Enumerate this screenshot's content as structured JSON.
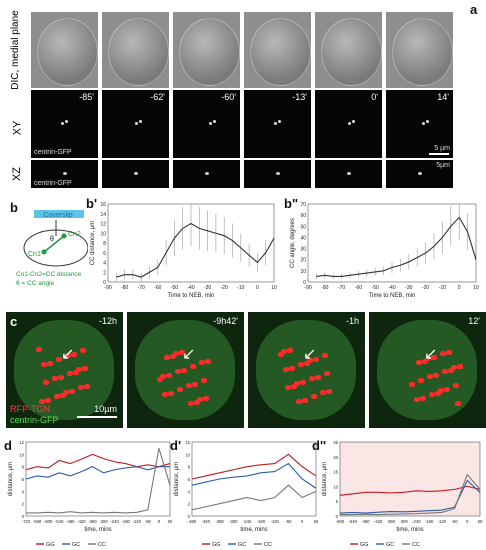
{
  "panel_a": {
    "letter": "a",
    "row_labels": {
      "dic": "DIC, medial plane",
      "xy": "XY",
      "xz": "XZ"
    },
    "times": [
      "-85'",
      "-62'",
      "-60'",
      "-13'",
      "0'",
      "14'"
    ],
    "channel": "centrin-GFP",
    "scale_xy": "5 µm",
    "scale_xz": "5µm"
  },
  "panel_b": {
    "letter": "b",
    "coverslip": "Coverslip",
    "cn1": "Cn1",
    "cn2": "Cn2",
    "theta": "θ",
    "legend_line1": "Cn1-Cn2=CC distance",
    "legend_line2": "θ = CC angle"
  },
  "panel_b1": {
    "letter": "b'",
    "xlabel": "Time to NEB, min",
    "ylabel": "CC distance, µm",
    "xticks": [
      "-90",
      "-80",
      "-70",
      "-60",
      "-50",
      "-40",
      "-30",
      "-20",
      "-10",
      "0",
      "10"
    ],
    "yticks": [
      "0",
      "2",
      "4",
      "6",
      "8",
      "10",
      "12",
      "14",
      "16"
    ]
  },
  "panel_b2": {
    "letter": "b\"",
    "xlabel": "Time to NEB, min",
    "ylabel": "CC angle, degrees",
    "xticks": [
      "-90",
      "-80",
      "-70",
      "-60",
      "-50",
      "-40",
      "-30",
      "-20",
      "-10",
      "0",
      "10"
    ],
    "yticks": [
      "0",
      "10",
      "20",
      "30",
      "40",
      "50",
      "60",
      "70"
    ]
  },
  "panel_c": {
    "letter": "c",
    "times": [
      "-12h",
      "-9h42'",
      "-1h",
      "12'"
    ],
    "legend_red": "RFP-TGN",
    "legend_green": "centrin-GFP",
    "scale": "10µm"
  },
  "panel_d": {
    "d1": {
      "letter": "d",
      "ylabel": "distance, µm",
      "xlabel": "time, mins",
      "yticks": [
        "0",
        "2",
        "4",
        "6",
        "8",
        "10",
        "12"
      ],
      "xticks": [
        "-720",
        "-660",
        "-600",
        "-540",
        "-480",
        "-420",
        "-360",
        "-300",
        "-240",
        "-180",
        "-120",
        "-60",
        "0",
        "60"
      ]
    },
    "d2": {
      "letter": "d'",
      "ylabel": "distance, µm",
      "xlabel": "time, mins",
      "yticks": [
        "0",
        "2",
        "4",
        "6",
        "8",
        "10",
        "12"
      ],
      "xticks": [
        "-480",
        "-420",
        "-360",
        "-300",
        "-240",
        "-180",
        "-120",
        "-60",
        "0",
        "60"
      ]
    },
    "d3": {
      "letter": "d''",
      "ylabel": "distance, µm",
      "xlabel": "time, mins",
      "yticks": [
        "0",
        "5",
        "10",
        "15",
        "20",
        "25"
      ],
      "xticks": [
        "-600",
        "-540",
        "-480",
        "-420",
        "-360",
        "-300",
        "-240",
        "-180",
        "-120",
        "-60",
        "0",
        "60"
      ]
    },
    "legend": [
      "GG",
      "GC",
      "CC"
    ],
    "colors": {
      "GG": "#c0191f",
      "GC": "#2a5ca8",
      "CC": "#777777"
    }
  },
  "chart_data": [
    {
      "type": "line",
      "id": "b'",
      "xlabel": "Time to NEB, min",
      "ylabel": "CC distance, µm",
      "xlim": [
        -90,
        10
      ],
      "ylim": [
        0,
        16
      ],
      "series": [
        {
          "x": [
            -85,
            -80,
            -75,
            -70,
            -65,
            -60,
            -55,
            -50,
            -45,
            -40,
            -35,
            -30,
            -25,
            -20,
            -15,
            -10,
            -5,
            0,
            5,
            10
          ],
          "values": [
            1,
            1.5,
            1.5,
            1,
            2,
            3,
            6,
            9,
            11,
            12,
            11,
            10.5,
            10,
            9.5,
            8.5,
            7,
            5.5,
            4,
            6,
            9
          ]
        }
      ]
    },
    {
      "type": "line",
      "id": "b\"",
      "xlabel": "Time to NEB, min",
      "ylabel": "CC angle, degrees",
      "xlim": [
        -90,
        10
      ],
      "ylim": [
        0,
        70
      ],
      "series": [
        {
          "x": [
            -85,
            -80,
            -75,
            -70,
            -65,
            -60,
            -55,
            -50,
            -45,
            -40,
            -35,
            -30,
            -25,
            -20,
            -15,
            -10,
            -5,
            0,
            5,
            10
          ],
          "values": [
            5,
            6,
            5,
            5,
            6,
            7,
            8,
            9,
            10,
            13,
            15,
            18,
            22,
            26,
            32,
            40,
            50,
            58,
            45,
            20
          ]
        }
      ]
    },
    {
      "type": "line",
      "id": "d",
      "xlabel": "time, mins",
      "ylabel": "distance, µm",
      "xlim": [
        -720,
        60
      ],
      "ylim": [
        0,
        12
      ],
      "series": [
        {
          "name": "GG",
          "x": [
            -720,
            -660,
            -600,
            -540,
            -480,
            -420,
            -360,
            -300,
            -240,
            -180,
            -120,
            -60,
            0,
            60
          ],
          "values": [
            7.5,
            8,
            7.8,
            9,
            8.5,
            9.2,
            10,
            9.3,
            8.8,
            8.5,
            8,
            8.3,
            8,
            8.5
          ]
        },
        {
          "name": "GC",
          "x": [
            -720,
            -660,
            -600,
            -540,
            -480,
            -420,
            -360,
            -300,
            -240,
            -180,
            -120,
            -60,
            0,
            60
          ],
          "values": [
            6,
            6.5,
            6.3,
            7,
            6.5,
            7.2,
            8,
            7,
            7.5,
            7.8,
            8,
            7.5,
            8,
            8
          ]
        },
        {
          "name": "CC",
          "x": [
            -720,
            -660,
            -600,
            -540,
            -480,
            -420,
            -360,
            -300,
            -240,
            -180,
            -120,
            -60,
            0,
            60
          ],
          "values": [
            0.5,
            0.5,
            0.6,
            0.5,
            0.7,
            0.5,
            0.6,
            0.5,
            0.6,
            0.5,
            0.6,
            1,
            11,
            5
          ]
        }
      ]
    },
    {
      "type": "line",
      "id": "d'",
      "xlabel": "time, mins",
      "ylabel": "distance, µm",
      "xlim": [
        -480,
        60
      ],
      "ylim": [
        0,
        12
      ],
      "series": [
        {
          "name": "GG",
          "x": [
            -480,
            -420,
            -360,
            -300,
            -240,
            -180,
            -120,
            -60,
            0,
            60
          ],
          "values": [
            6,
            6.5,
            7,
            7.5,
            8,
            8.3,
            8.5,
            10,
            8,
            6.5
          ]
        },
        {
          "name": "GC",
          "x": [
            -480,
            -420,
            -360,
            -300,
            -240,
            -180,
            -120,
            -60,
            0,
            60
          ],
          "values": [
            5,
            5.5,
            6,
            6.3,
            6.5,
            7,
            7.2,
            8.5,
            6,
            4.5
          ]
        },
        {
          "name": "CC",
          "x": [
            -480,
            -420,
            -360,
            -300,
            -240,
            -180,
            -120,
            -60,
            0,
            60
          ],
          "values": [
            1,
            1.5,
            2,
            2.5,
            3,
            2.5,
            3,
            5,
            3,
            4
          ]
        }
      ]
    },
    {
      "type": "line",
      "id": "d''",
      "xlabel": "time, mins",
      "ylabel": "distance, µm",
      "xlim": [
        -600,
        60
      ],
      "ylim": [
        0,
        25
      ],
      "series": [
        {
          "name": "GG",
          "x": [
            -600,
            -540,
            -480,
            -420,
            -360,
            -300,
            -240,
            -180,
            -120,
            -60,
            0,
            60
          ],
          "values": [
            7,
            7.5,
            8,
            8,
            7.8,
            8,
            8.5,
            8.3,
            8.5,
            9,
            10,
            9
          ]
        },
        {
          "name": "GC",
          "x": [
            -600,
            -540,
            -480,
            -420,
            -360,
            -300,
            -240,
            -180,
            -120,
            -60,
            0,
            60
          ],
          "values": [
            1,
            1.2,
            1,
            1.3,
            1.5,
            1.4,
            1.6,
            1.8,
            2,
            3,
            12,
            8
          ]
        },
        {
          "name": "CC",
          "x": [
            -600,
            -540,
            -480,
            -420,
            -360,
            -300,
            -240,
            -180,
            -120,
            -60,
            0,
            60
          ],
          "values": [
            0.5,
            0.5,
            0.6,
            0.5,
            0.6,
            0.7,
            0.8,
            1,
            1.2,
            2.5,
            14,
            9
          ]
        }
      ]
    }
  ]
}
